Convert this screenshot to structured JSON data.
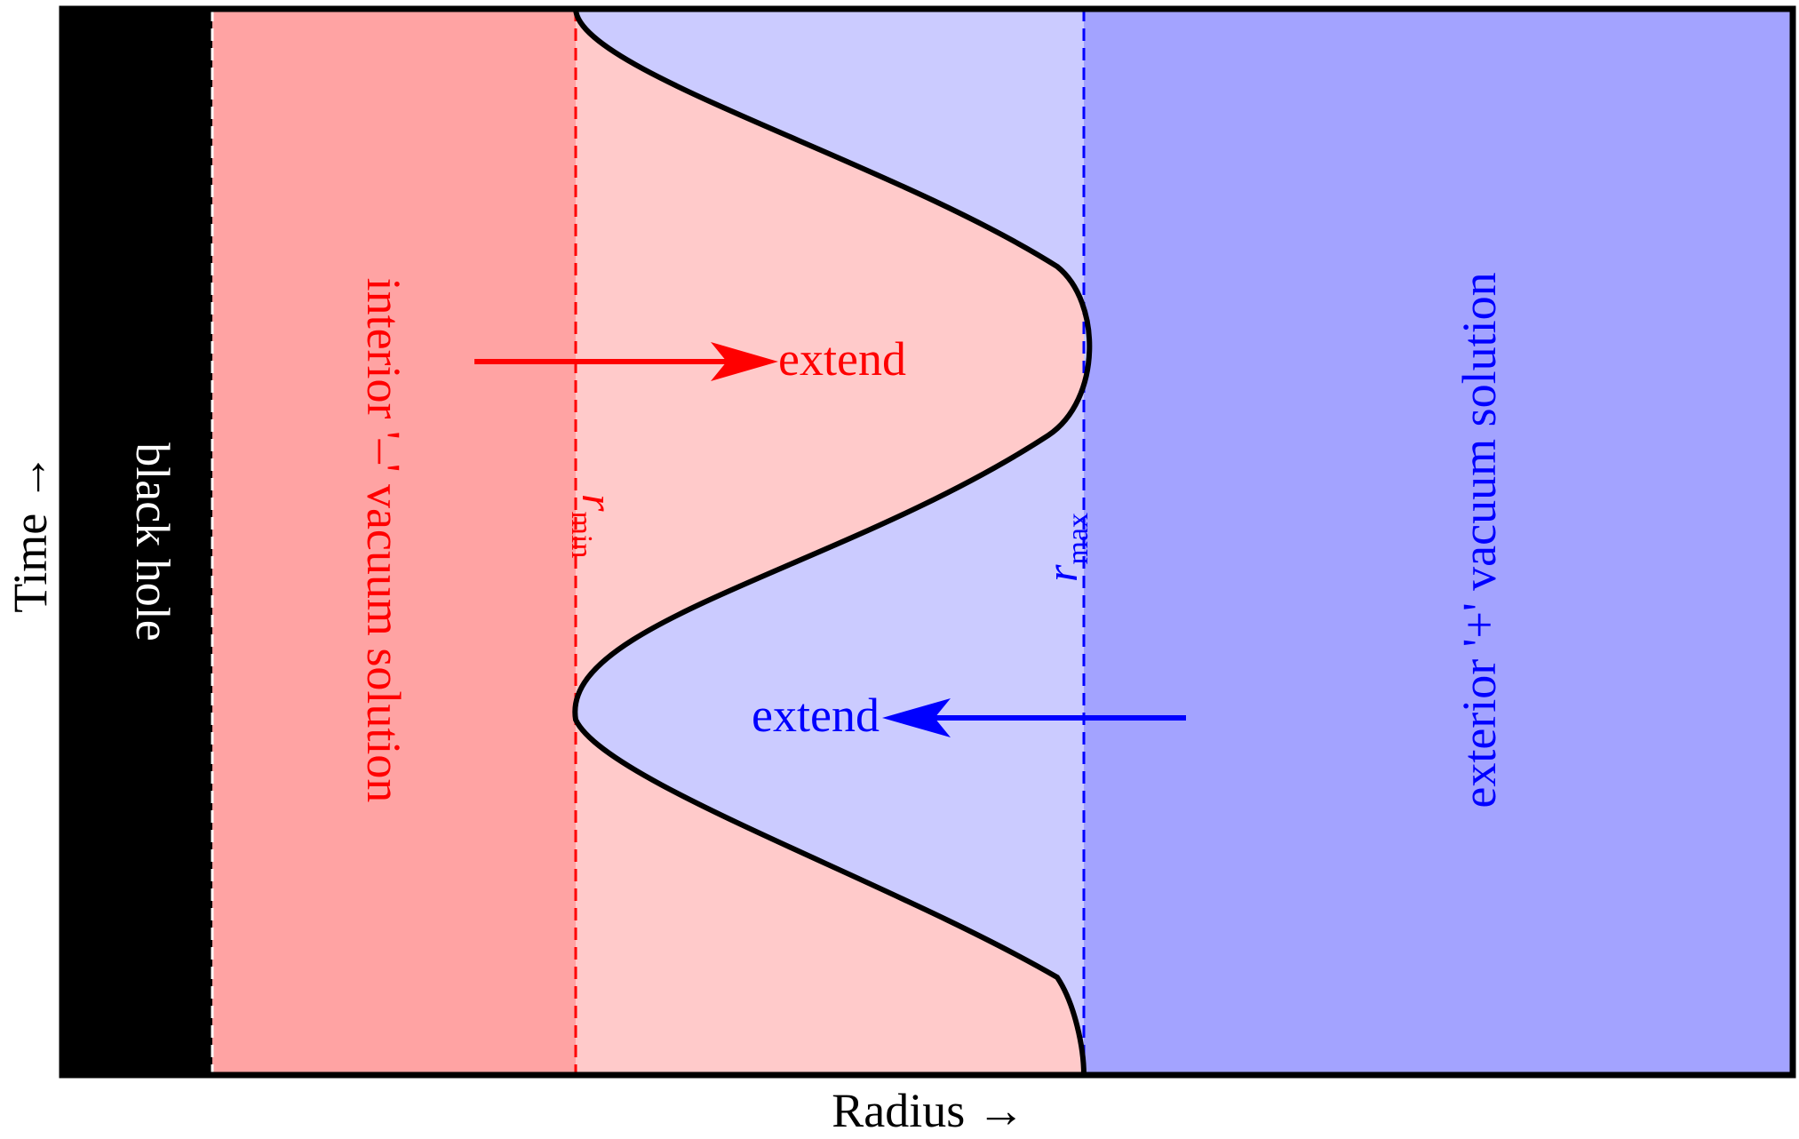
{
  "axes": {
    "x_label": "Radius →",
    "y_label": "Time →"
  },
  "regions": {
    "black_hole_label": "black hole",
    "interior_label": "interior '‒' vacuum solution",
    "exterior_label": "exterior '+' vacuum solution"
  },
  "boundaries": {
    "r_min": {
      "symbol": "r",
      "subscript": "min"
    },
    "r_max": {
      "symbol": "r",
      "subscript": "max"
    }
  },
  "arrows": {
    "interior_extend_label": "extend",
    "exterior_extend_label": "extend"
  },
  "colors": {
    "black_hole": "#000000",
    "interior_dark": "#ffa3a3",
    "interior_light": "#ffcaca",
    "exterior_light": "#cbcbff",
    "exterior_dark": "#a3a3ff",
    "interior_text": "#ff0000",
    "exterior_text": "#0000ff",
    "curve": "#000000"
  }
}
